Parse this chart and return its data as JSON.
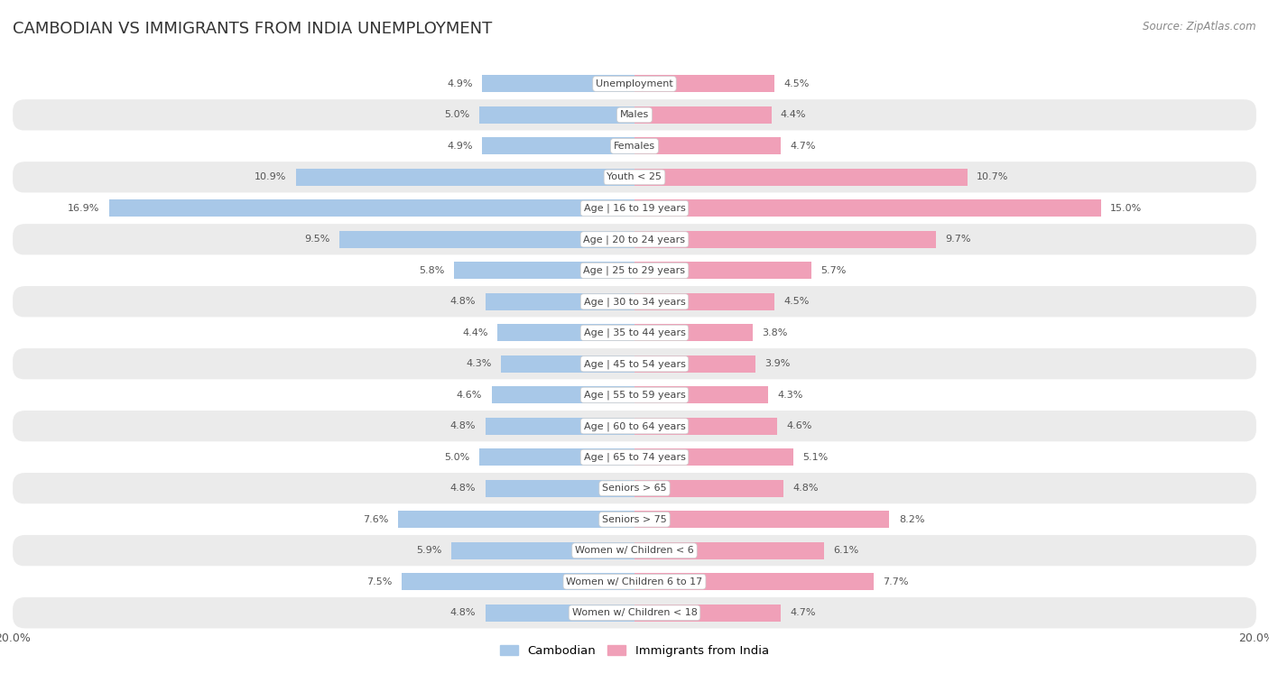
{
  "title": "CAMBODIAN VS IMMIGRANTS FROM INDIA UNEMPLOYMENT",
  "source": "Source: ZipAtlas.com",
  "categories": [
    "Unemployment",
    "Males",
    "Females",
    "Youth < 25",
    "Age | 16 to 19 years",
    "Age | 20 to 24 years",
    "Age | 25 to 29 years",
    "Age | 30 to 34 years",
    "Age | 35 to 44 years",
    "Age | 45 to 54 years",
    "Age | 55 to 59 years",
    "Age | 60 to 64 years",
    "Age | 65 to 74 years",
    "Seniors > 65",
    "Seniors > 75",
    "Women w/ Children < 6",
    "Women w/ Children 6 to 17",
    "Women w/ Children < 18"
  ],
  "cambodian": [
    4.9,
    5.0,
    4.9,
    10.9,
    16.9,
    9.5,
    5.8,
    4.8,
    4.4,
    4.3,
    4.6,
    4.8,
    5.0,
    4.8,
    7.6,
    5.9,
    7.5,
    4.8
  ],
  "india": [
    4.5,
    4.4,
    4.7,
    10.7,
    15.0,
    9.7,
    5.7,
    4.5,
    3.8,
    3.9,
    4.3,
    4.6,
    5.1,
    4.8,
    8.2,
    6.1,
    7.7,
    4.7
  ],
  "cambodian_color": "#a8c8e8",
  "india_color": "#f0a0b8",
  "axis_max": 20.0,
  "background_color": "#ffffff",
  "row_color_light": "#ffffff",
  "row_color_dark": "#ebebeb",
  "label_fontsize": 8.0,
  "title_fontsize": 13,
  "value_fontsize": 8.0,
  "source_fontsize": 8.5
}
